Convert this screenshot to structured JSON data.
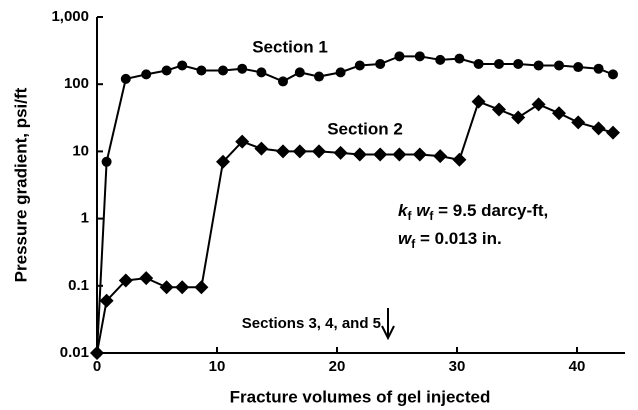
{
  "chart_data": {
    "type": "line",
    "xlabel": "Fracture volumes of gel injected",
    "ylabel": "Pressure gradient, psi/ft",
    "xlim": [
      0,
      44
    ],
    "xticks": [
      0,
      10,
      20,
      30,
      40
    ],
    "ylim": [
      0.01,
      1000
    ],
    "log_y": true,
    "yticks": [
      0.01,
      0.1,
      1,
      10,
      100,
      {
        "value": 1000,
        "label": "1,000"
      }
    ],
    "series": [
      {
        "name": "Section 1",
        "color": "#000000",
        "marker": "circle",
        "x": [
          0,
          0.8,
          2.4,
          4.1,
          5.8,
          7.1,
          8.7,
          10.5,
          12.1,
          13.7,
          15.5,
          16.9,
          18.5,
          20.3,
          21.9,
          23.6,
          25.2,
          26.9,
          28.6,
          30.2,
          31.8,
          33.5,
          35.1,
          36.8,
          38.5,
          40.1,
          41.8,
          43
        ],
        "values": [
          0.01,
          7,
          120,
          140,
          160,
          190,
          160,
          160,
          170,
          150,
          110,
          150,
          130,
          150,
          190,
          200,
          260,
          260,
          230,
          240,
          200,
          200,
          200,
          190,
          190,
          180,
          170,
          140
        ]
      },
      {
        "name": "Section 2",
        "color": "#000000",
        "marker": "diamond",
        "x": [
          0,
          0.8,
          2.4,
          4.1,
          5.8,
          7.1,
          8.7,
          10.5,
          12.1,
          13.7,
          15.5,
          16.9,
          18.5,
          20.3,
          21.9,
          23.6,
          25.2,
          26.9,
          28.6,
          30.2,
          31.8,
          33.5,
          35.1,
          36.8,
          38.5,
          40.1,
          41.8,
          43
        ],
        "values": [
          0.01,
          0.06,
          0.12,
          0.13,
          0.095,
          0.095,
          0.095,
          7,
          14,
          11,
          10,
          10,
          10,
          9.5,
          9,
          9,
          9,
          9,
          8.5,
          7.5,
          55,
          42,
          32,
          50,
          37,
          27,
          22,
          19
        ]
      }
    ],
    "annotations": {
      "kw": [
        "k",
        "f",
        " w",
        "f",
        " = 9.5 darcy-ft,"
      ],
      "w": [
        "w",
        "f",
        " = 0.013 in."
      ],
      "sections": "Sections 3, 4, and 5"
    }
  }
}
